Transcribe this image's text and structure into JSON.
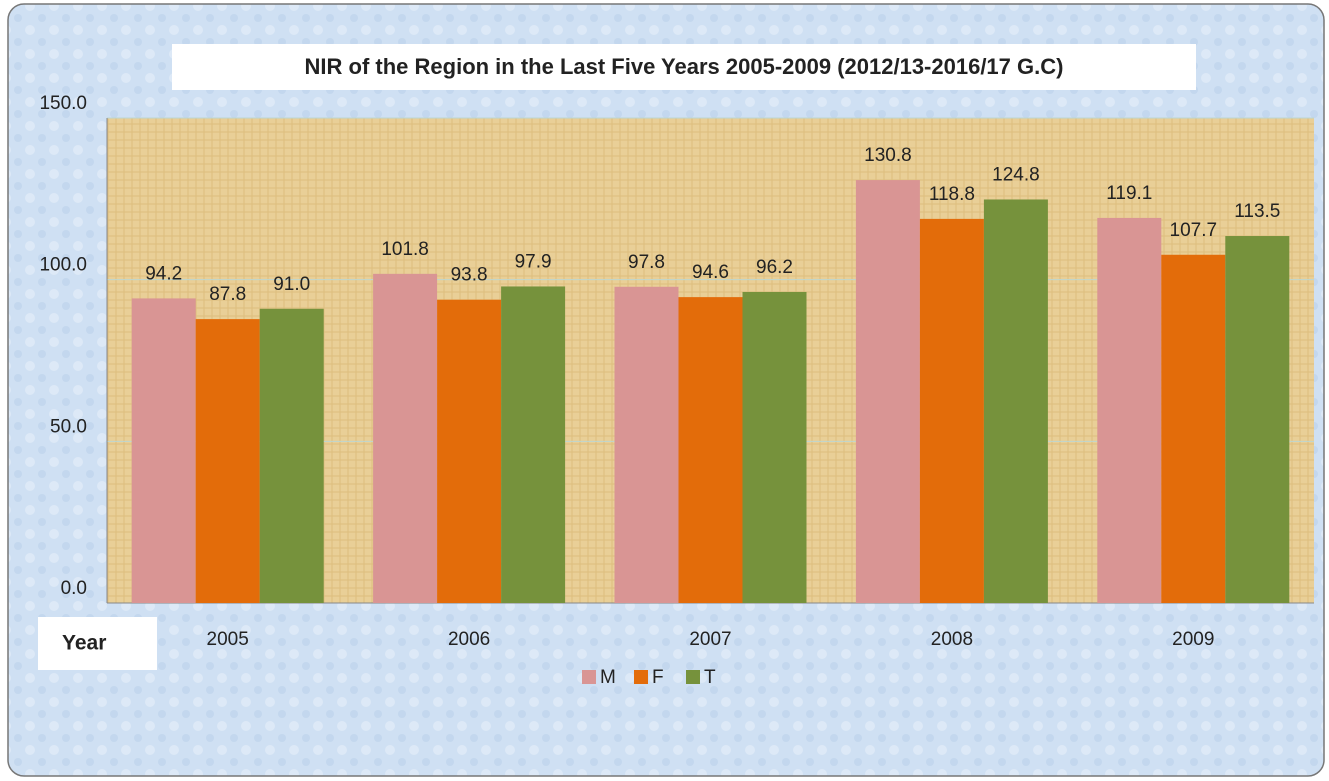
{
  "chart_data": {
    "type": "bar",
    "title": "NIR of the Region in the Last Five Years 2005-2009 (2012/13-2016/17 G.C)",
    "x_label": "Year",
    "categories": [
      "2005",
      "2006",
      "2007",
      "2008",
      "2009"
    ],
    "series": [
      {
        "name": "M",
        "color": "#d99594",
        "values": [
          94.2,
          101.8,
          97.8,
          130.8,
          119.1
        ],
        "value_labels": [
          "94.2",
          "101.8",
          "97.8",
          "130.8",
          "119.1"
        ]
      },
      {
        "name": "F",
        "color": "#e36c0a",
        "values": [
          87.8,
          93.8,
          94.6,
          118.8,
          107.7
        ],
        "value_labels": [
          "87.8",
          "93.8",
          "94.6",
          "118.8",
          "107.7"
        ]
      },
      {
        "name": "T",
        "color": "#76923c",
        "values": [
          91,
          97.9,
          96.2,
          124.8,
          113.5
        ],
        "value_labels": [
          "91.0",
          "97.9",
          "96.2",
          "124.8",
          "113.5"
        ]
      }
    ],
    "ylim": [
      0,
      150
    ],
    "yticks": [
      {
        "value": 0,
        "label": "0.0"
      },
      {
        "value": 50,
        "label": "50.0"
      },
      {
        "value": 100,
        "label": "100.0"
      },
      {
        "value": 150,
        "label": "150.0"
      }
    ],
    "grid": true,
    "legend": "bottom"
  }
}
